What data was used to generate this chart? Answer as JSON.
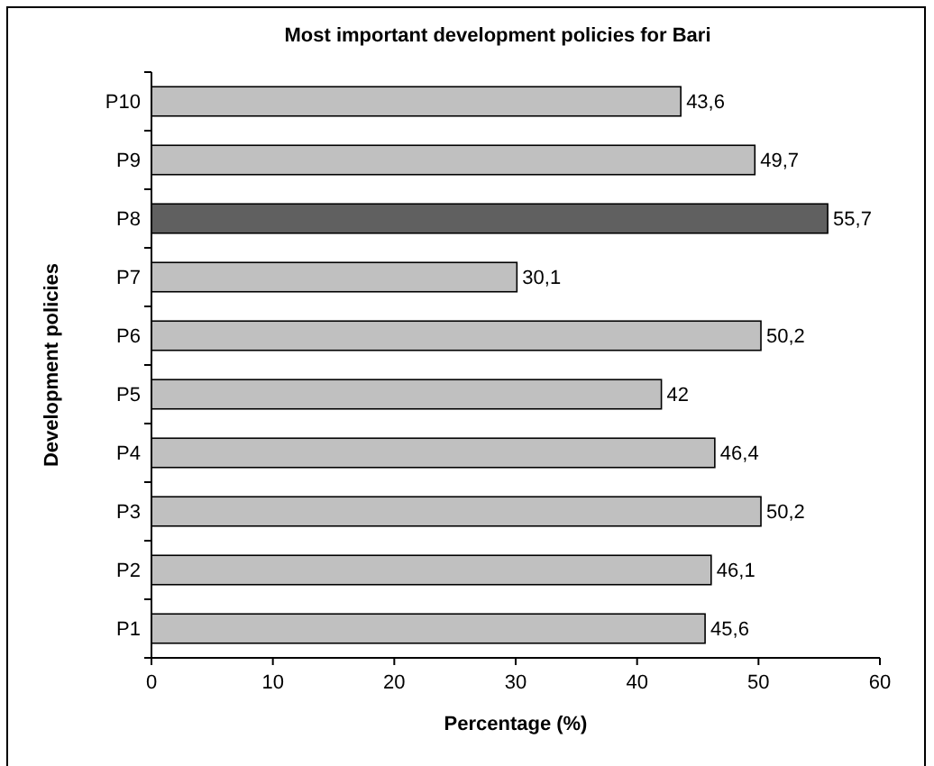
{
  "chart_data": {
    "type": "bar",
    "orientation": "horizontal",
    "title": "Most important development policies for Bari",
    "xlabel": "Percentage (%)",
    "ylabel": "Development policies",
    "categories": [
      "P10",
      "P9",
      "P8",
      "P7",
      "P6",
      "P5",
      "P4",
      "P3",
      "P2",
      "P1"
    ],
    "values": [
      43.6,
      49.7,
      55.7,
      30.1,
      50.2,
      42,
      46.4,
      50.2,
      46.1,
      45.6
    ],
    "value_labels": [
      "43,6",
      "49,7",
      "55,7",
      "30,1",
      "50,2",
      "42",
      "46,4",
      "50,2",
      "46,1",
      "45,6"
    ],
    "colors": [
      "#c0c0c0",
      "#c0c0c0",
      "#606060",
      "#c0c0c0",
      "#c0c0c0",
      "#c0c0c0",
      "#c0c0c0",
      "#c0c0c0",
      "#c0c0c0",
      "#c0c0c0"
    ],
    "xlim": [
      0,
      60
    ],
    "xticks": [
      0,
      10,
      20,
      30,
      40,
      50,
      60
    ],
    "grid": false
  }
}
